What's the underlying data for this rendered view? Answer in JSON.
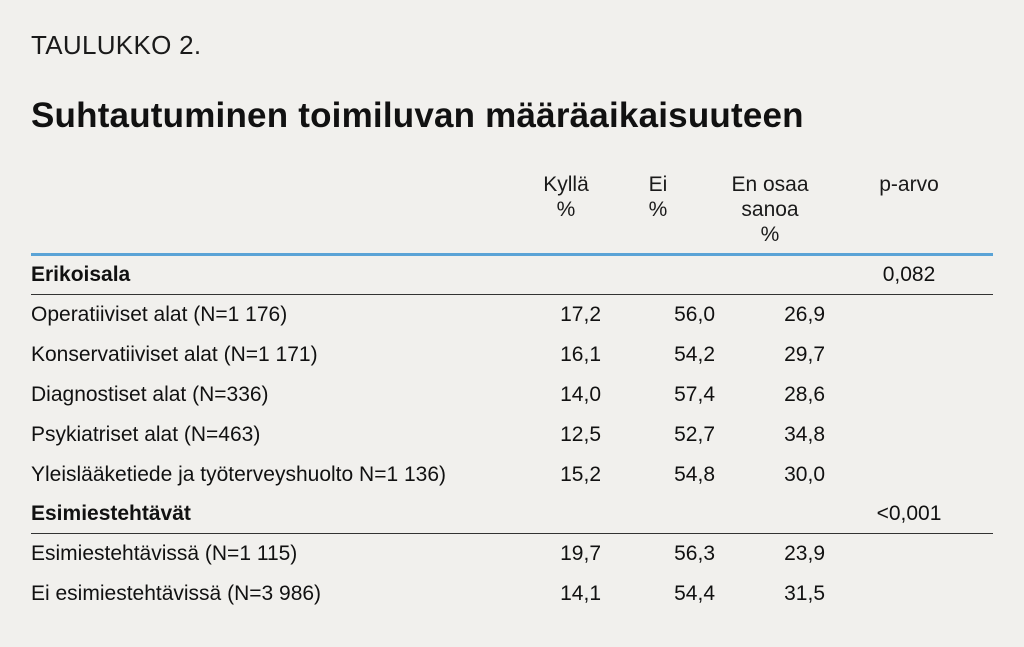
{
  "header": {
    "label": "TAULUKKO 2.",
    "title": "Suhtautuminen toimiluvan määräaikaisuuteen"
  },
  "columns": [
    {
      "line1": "Kyllä",
      "line2": "%",
      "line3": ""
    },
    {
      "line1": "Ei",
      "line2": "%",
      "line3": ""
    },
    {
      "line1": "En osaa",
      "line2": "sanoa",
      "line3": "%"
    },
    {
      "line1": "p-arvo",
      "line2": "",
      "line3": ""
    }
  ],
  "sections": [
    {
      "name": "Erikoisala",
      "p_value": "0,082",
      "rows": [
        {
          "label": "Operatiiviset alat (N=1 176)",
          "kylla": "17,2",
          "ei": "56,0",
          "en_osaa": "26,9"
        },
        {
          "label": "Konservatiiviset alat (N=1 171)",
          "kylla": "16,1",
          "ei": "54,2",
          "en_osaa": "29,7"
        },
        {
          "label": "Diagnostiset alat (N=336)",
          "kylla": "14,0",
          "ei": "57,4",
          "en_osaa": "28,6"
        },
        {
          "label": "Psykiatriset alat (N=463)",
          "kylla": "12,5",
          "ei": "52,7",
          "en_osaa": "34,8"
        },
        {
          "label": "Yleislääketiede ja työterveyshuolto N=1 136)",
          "kylla": "15,2",
          "ei": "54,8",
          "en_osaa": "30,0"
        }
      ]
    },
    {
      "name": "Esimiestehtävät",
      "p_value": "<0,001",
      "rows": [
        {
          "label": "Esimiestehtävissä (N=1 115)",
          "kylla": "19,7",
          "ei": "56,3",
          "en_osaa": "23,9"
        },
        {
          "label": "Ei esimiestehtävissä (N=3 986)",
          "kylla": "14,1",
          "ei": "54,4",
          "en_osaa": "31,5"
        }
      ]
    }
  ],
  "colors": {
    "background": "#f1f0ed",
    "header_rule": "#5aa3d6",
    "text": "#111111"
  }
}
